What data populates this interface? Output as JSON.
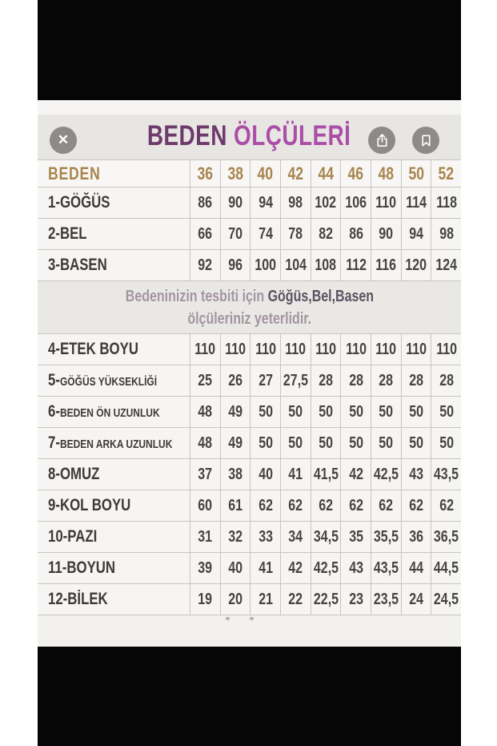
{
  "header": {
    "title_primary": "BEDEN",
    "title_secondary": " ÖLÇÜLERİ",
    "close_glyph": "✕"
  },
  "table": {
    "size_row": {
      "label": "BEDEN",
      "sizes": [
        "36",
        "38",
        "40",
        "42",
        "44",
        "46",
        "48",
        "50",
        "52"
      ]
    },
    "rows_top": [
      {
        "prefix": "1-",
        "name": "GÖĞÜS",
        "small": false,
        "values": [
          "86",
          "90",
          "94",
          "98",
          "102",
          "106",
          "110",
          "114",
          "118"
        ]
      },
      {
        "prefix": "2-",
        "name": "BEL",
        "small": false,
        "values": [
          "66",
          "70",
          "74",
          "78",
          "82",
          "86",
          "90",
          "94",
          "98"
        ]
      },
      {
        "prefix": "3-",
        "name": "BASEN",
        "small": false,
        "values": [
          "92",
          "96",
          "100",
          "104",
          "108",
          "112",
          "116",
          "120",
          "124"
        ]
      }
    ],
    "note": {
      "line1_regular": "Bedeninizin tesbiti için ",
      "line1_bold": "Göğüs,Bel,Basen",
      "line2": "ölçüleriniz yeterlidir."
    },
    "rows_bottom": [
      {
        "prefix": "4-",
        "name": "ETEK BOYU",
        "small": false,
        "values": [
          "110",
          "110",
          "110",
          "110",
          "110",
          "110",
          "110",
          "110",
          "110"
        ]
      },
      {
        "prefix": "5-",
        "name": "GÖĞÜS YÜKSEKLİĞİ",
        "small": true,
        "values": [
          "25",
          "26",
          "27",
          "27,5",
          "28",
          "28",
          "28",
          "28",
          "28"
        ]
      },
      {
        "prefix": "6-",
        "name": "BEDEN ÖN UZUNLUK",
        "small": true,
        "values": [
          "48",
          "49",
          "50",
          "50",
          "50",
          "50",
          "50",
          "50",
          "50"
        ]
      },
      {
        "prefix": "7-",
        "name": "BEDEN ARKA UZUNLUK",
        "small": true,
        "values": [
          "48",
          "49",
          "50",
          "50",
          "50",
          "50",
          "50",
          "50",
          "50"
        ]
      },
      {
        "prefix": "8-",
        "name": "OMUZ",
        "small": false,
        "values": [
          "37",
          "38",
          "40",
          "41",
          "41,5",
          "42",
          "42,5",
          "43",
          "43,5"
        ]
      },
      {
        "prefix": "9-",
        "name": "KOL BOYU",
        "small": false,
        "values": [
          "60",
          "61",
          "62",
          "62",
          "62",
          "62",
          "62",
          "62",
          "62"
        ]
      },
      {
        "prefix": "10-",
        "name": "PAZI",
        "small": false,
        "values": [
          "31",
          "32",
          "33",
          "34",
          "34,5",
          "35",
          "35,5",
          "36",
          "36,5"
        ]
      },
      {
        "prefix": "11-",
        "name": "BOYUN",
        "small": false,
        "values": [
          "39",
          "40",
          "41",
          "42",
          "42,5",
          "43",
          "43,5",
          "44",
          "44,5"
        ]
      },
      {
        "prefix": "12-",
        "name": "BİLEK",
        "small": false,
        "values": [
          "19",
          "20",
          "21",
          "22",
          "22,5",
          "23",
          "23,5",
          "24",
          "24,5"
        ]
      }
    ]
  },
  "page_indicator": {
    "dot_count": 2
  },
  "colors": {
    "title_primary": "#6e3a6c",
    "title_secondary": "#aa4ea7",
    "size_accent": "#a8854e",
    "label_text": "#3c3b39",
    "value_text": "#47453f",
    "note_regular": "#a396a2",
    "note_bold": "#5d5362",
    "button_bg": "#8d8b89"
  }
}
